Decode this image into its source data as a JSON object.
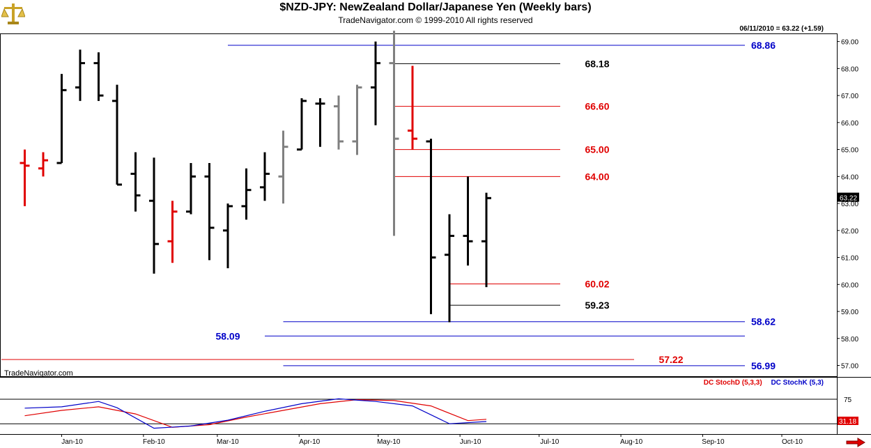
{
  "header": {
    "title": "$NZD-JPY:  NewZealand Dollar/Japanese Yen  (Weekly bars)",
    "subtitle": "TradeNavigator.com © 1999-2010 All rights reserved",
    "last_info": "06/11/2010 = 63.22 (+1.59)",
    "brand": "TradeNavigator.com"
  },
  "stoch": {
    "d_label": "DC StochD (5,3,3)",
    "k_label": "DC StochK (5,3)",
    "level_label": "75",
    "last_value": "31.18"
  },
  "colors": {
    "black": "#000000",
    "gray": "#808080",
    "red": "#e00000",
    "blue": "#0000c8"
  },
  "chart_data": [
    {
      "type": "ohlc",
      "title": "$NZD-JPY:  NewZealand Dollar/Japanese Yen  (Weekly bars)",
      "ylim": [
        56.6,
        69.3
      ],
      "y_ticks": [
        "69.00",
        "68.00",
        "67.00",
        "66.00",
        "65.00",
        "64.00",
        "63.00",
        "62.00",
        "61.00",
        "60.00",
        "59.00",
        "58.00",
        "57.00"
      ],
      "x_ticks": [
        "Jan-10",
        "Feb-10",
        "Mar-10",
        "Apr-10",
        "May-10",
        "Jun-10",
        "Jul-10",
        "Aug-10",
        "Sep-10",
        "Oct-10"
      ],
      "bars": [
        {
          "date": "2009-12-18",
          "open": 64.5,
          "high": 65.0,
          "low": 62.9,
          "close": 64.4,
          "color": "red"
        },
        {
          "date": "2009-12-25",
          "open": 64.3,
          "high": 64.9,
          "low": 64.0,
          "close": 64.6,
          "color": "red"
        },
        {
          "date": "2010-01-01",
          "open": 64.5,
          "high": 67.8,
          "low": 64.5,
          "close": 67.2,
          "color": "black"
        },
        {
          "date": "2010-01-08",
          "open": 67.3,
          "high": 68.7,
          "low": 66.8,
          "close": 68.2,
          "color": "black"
        },
        {
          "date": "2010-01-15",
          "open": 68.2,
          "high": 68.6,
          "low": 66.8,
          "close": 67.0,
          "color": "black"
        },
        {
          "date": "2010-01-22",
          "open": 66.8,
          "high": 67.4,
          "low": 63.7,
          "close": 63.7,
          "color": "black"
        },
        {
          "date": "2010-01-29",
          "open": 64.1,
          "high": 64.9,
          "low": 62.7,
          "close": 63.3,
          "color": "black"
        },
        {
          "date": "2010-02-05",
          "open": 63.1,
          "high": 64.7,
          "low": 60.4,
          "close": 61.5,
          "color": "black"
        },
        {
          "date": "2010-02-12",
          "open": 61.6,
          "high": 63.1,
          "low": 60.8,
          "close": 62.7,
          "color": "red"
        },
        {
          "date": "2010-02-19",
          "open": 62.7,
          "high": 64.5,
          "low": 62.6,
          "close": 64.0,
          "color": "black"
        },
        {
          "date": "2010-02-26",
          "open": 64.0,
          "high": 64.5,
          "low": 60.9,
          "close": 62.1,
          "color": "black"
        },
        {
          "date": "2010-03-05",
          "open": 62.0,
          "high": 63.0,
          "low": 60.6,
          "close": 62.9,
          "color": "black"
        },
        {
          "date": "2010-03-12",
          "open": 62.9,
          "high": 64.3,
          "low": 62.4,
          "close": 63.5,
          "color": "black"
        },
        {
          "date": "2010-03-19",
          "open": 63.6,
          "high": 64.9,
          "low": 63.1,
          "close": 64.1,
          "color": "black"
        },
        {
          "date": "2010-03-26",
          "open": 64.0,
          "high": 65.7,
          "low": 63.0,
          "close": 65.1,
          "color": "gray"
        },
        {
          "date": "2010-04-02",
          "open": 65.0,
          "high": 66.9,
          "low": 65.0,
          "close": 66.8,
          "color": "black"
        },
        {
          "date": "2010-04-09",
          "open": 66.7,
          "high": 66.9,
          "low": 65.1,
          "close": 66.7,
          "color": "black"
        },
        {
          "date": "2010-04-16",
          "open": 66.6,
          "high": 67.0,
          "low": 65.0,
          "close": 65.3,
          "color": "gray"
        },
        {
          "date": "2010-04-23",
          "open": 65.3,
          "high": 67.4,
          "low": 64.8,
          "close": 67.3,
          "color": "gray"
        },
        {
          "date": "2010-04-30",
          "open": 67.3,
          "high": 69.0,
          "low": 65.9,
          "close": 68.2,
          "color": "black"
        },
        {
          "date": "2010-05-07",
          "open": 68.2,
          "high": 69.4,
          "low": 61.8,
          "close": 65.4,
          "color": "gray"
        },
        {
          "date": "2010-05-14",
          "open": 65.7,
          "high": 68.1,
          "low": 65.0,
          "close": 65.4,
          "color": "red"
        },
        {
          "date": "2010-05-21",
          "open": 65.3,
          "high": 65.4,
          "low": 58.9,
          "close": 61.0,
          "color": "black"
        },
        {
          "date": "2010-05-28",
          "open": 61.1,
          "high": 62.6,
          "low": 58.6,
          "close": 61.8,
          "color": "black"
        },
        {
          "date": "2010-06-04",
          "open": 61.8,
          "high": 64.0,
          "low": 60.7,
          "close": 61.6,
          "color": "black"
        },
        {
          "date": "2010-06-11",
          "open": 61.6,
          "high": 63.4,
          "low": 59.9,
          "close": 63.2,
          "color": "black"
        }
      ],
      "levels": [
        {
          "value": 68.86,
          "label": "68.86",
          "color": "blue",
          "from": "2010-03-05",
          "to": "2010-09-17",
          "label_at": "2010-09-24"
        },
        {
          "value": 68.18,
          "label": "68.18",
          "color": "black",
          "from": "2010-05-07",
          "to": "2010-07-09",
          "label_at": "2010-07-23"
        },
        {
          "value": 66.6,
          "label": "66.60",
          "color": "red",
          "from": "2010-05-07",
          "to": "2010-07-09",
          "label_at": "2010-07-23"
        },
        {
          "value": 65.0,
          "label": "65.00",
          "color": "red",
          "from": "2010-05-07",
          "to": "2010-07-09",
          "label_at": "2010-07-23"
        },
        {
          "value": 64.0,
          "label": "64.00",
          "color": "red",
          "from": "2010-05-07",
          "to": "2010-07-09",
          "label_at": "2010-07-23"
        },
        {
          "value": 60.02,
          "label": "60.02",
          "color": "red",
          "from": "2010-05-28",
          "to": "2010-07-09",
          "label_at": "2010-07-23"
        },
        {
          "value": 59.23,
          "label": "59.23",
          "color": "black",
          "from": "2010-05-28",
          "to": "2010-07-09",
          "label_at": "2010-07-23"
        },
        {
          "value": 58.62,
          "label": "58.62",
          "color": "blue",
          "from": "2010-03-26",
          "to": "2010-09-17",
          "label_at": "2010-09-24"
        },
        {
          "value": 58.09,
          "label": "58.09",
          "color": "blue",
          "from": "2010-03-19",
          "to": "2010-09-17",
          "label_at": "2010-03-05"
        },
        {
          "value": 57.22,
          "label": "57.22",
          "color": "red",
          "from": "2009-12-04",
          "to": "2010-08-06",
          "label_at": "2010-08-20"
        },
        {
          "value": 56.99,
          "label": "56.99",
          "color": "blue",
          "from": "2010-03-26",
          "to": "2010-09-17",
          "label_at": "2010-09-24"
        }
      ],
      "last_price": "63.22"
    },
    {
      "type": "line",
      "title": "",
      "ylim": [
        0,
        100
      ],
      "reference_lines": [
        75,
        20
      ],
      "series": [
        {
          "name": "DC StochD (5,3,3)",
          "color": "red",
          "points": [
            [
              "2009-12-18",
              38
            ],
            [
              "2010-01-01",
              50
            ],
            [
              "2010-01-15",
              58
            ],
            [
              "2010-01-29",
              42
            ],
            [
              "2010-02-12",
              12
            ],
            [
              "2010-02-26",
              18
            ],
            [
              "2010-03-12",
              35
            ],
            [
              "2010-03-26",
              50
            ],
            [
              "2010-04-09",
              65
            ],
            [
              "2010-04-23",
              74
            ],
            [
              "2010-05-07",
              72
            ],
            [
              "2010-05-21",
              60
            ],
            [
              "2010-06-04",
              27
            ],
            [
              "2010-06-11",
              30
            ]
          ]
        },
        {
          "name": "DC StochK (5,3)",
          "color": "blue",
          "points": [
            [
              "2009-12-18",
              55
            ],
            [
              "2010-01-01",
              58
            ],
            [
              "2010-01-15",
              70
            ],
            [
              "2010-01-22",
              56
            ],
            [
              "2010-02-05",
              10
            ],
            [
              "2010-02-19",
              15
            ],
            [
              "2010-03-05",
              28
            ],
            [
              "2010-03-19",
              48
            ],
            [
              "2010-04-02",
              65
            ],
            [
              "2010-04-16",
              76
            ],
            [
              "2010-04-30",
              70
            ],
            [
              "2010-05-14",
              60
            ],
            [
              "2010-05-28",
              20
            ],
            [
              "2010-06-11",
              25
            ]
          ]
        }
      ],
      "last_value": "31.18"
    }
  ]
}
